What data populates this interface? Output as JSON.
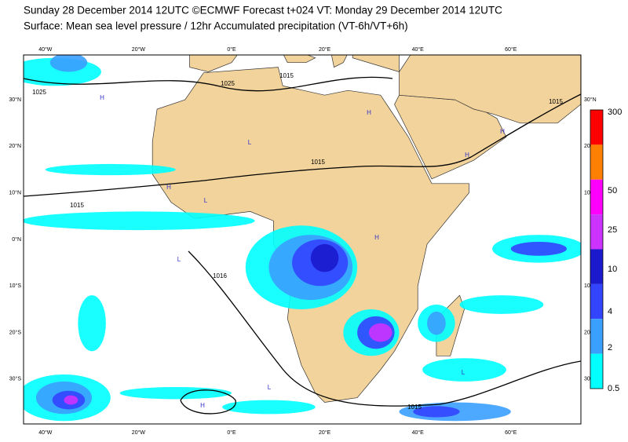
{
  "header": {
    "title": "Sunday 28 December 2014 12UTC ©ECMWF Forecast t+024 VT: Monday 29 December 2014 12UTC",
    "subtitle": "Surface: Mean sea level pressure / 12hr Accumulated precipitation (VT-6h/VT+6h)"
  },
  "map": {
    "lon_labels": [
      "40°W",
      "20°W",
      "0°E",
      "20°E",
      "40°E",
      "60°E"
    ],
    "lat_labels": [
      "30°N",
      "20°N",
      "10°N",
      "0°N",
      "10°S",
      "20°S",
      "30°S"
    ],
    "right_lat_labels": [
      "30°N",
      "20",
      "10",
      "10",
      "20",
      "30"
    ],
    "isobar_labels": [
      "1025",
      "1025",
      "1015",
      "1015",
      "1015",
      "1015",
      "1016",
      "1015"
    ],
    "pressure_centers": [
      "H",
      "L",
      "H",
      "L",
      "H",
      "H",
      "L",
      "H",
      "L",
      "H",
      "H",
      "L"
    ]
  },
  "colorbar": {
    "labels": [
      "300",
      "50",
      "25",
      "10",
      "4",
      "2",
      "0.5"
    ]
  }
}
